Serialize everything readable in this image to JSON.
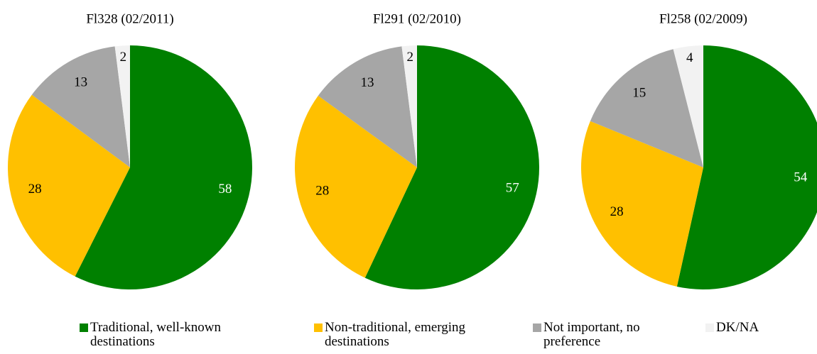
{
  "chart_data": [
    {
      "type": "pie",
      "title": "Fl328 (02/2011)",
      "values": [
        58,
        28,
        13,
        2
      ]
    },
    {
      "type": "pie",
      "title": "Fl291 (02/2010)",
      "values": [
        57,
        28,
        13,
        2
      ]
    },
    {
      "type": "pie",
      "title": "Fl258 (02/2009)",
      "values": [
        54,
        28,
        15,
        4
      ]
    }
  ],
  "legend": {
    "labels": [
      "Traditional, well-known destinations",
      "Non-traditional, emerging destinations",
      "Not important, no preference",
      "DK/NA"
    ],
    "colors": [
      "#008000",
      "#ffc000",
      "#a6a6a6",
      "#f2f2f2"
    ]
  }
}
